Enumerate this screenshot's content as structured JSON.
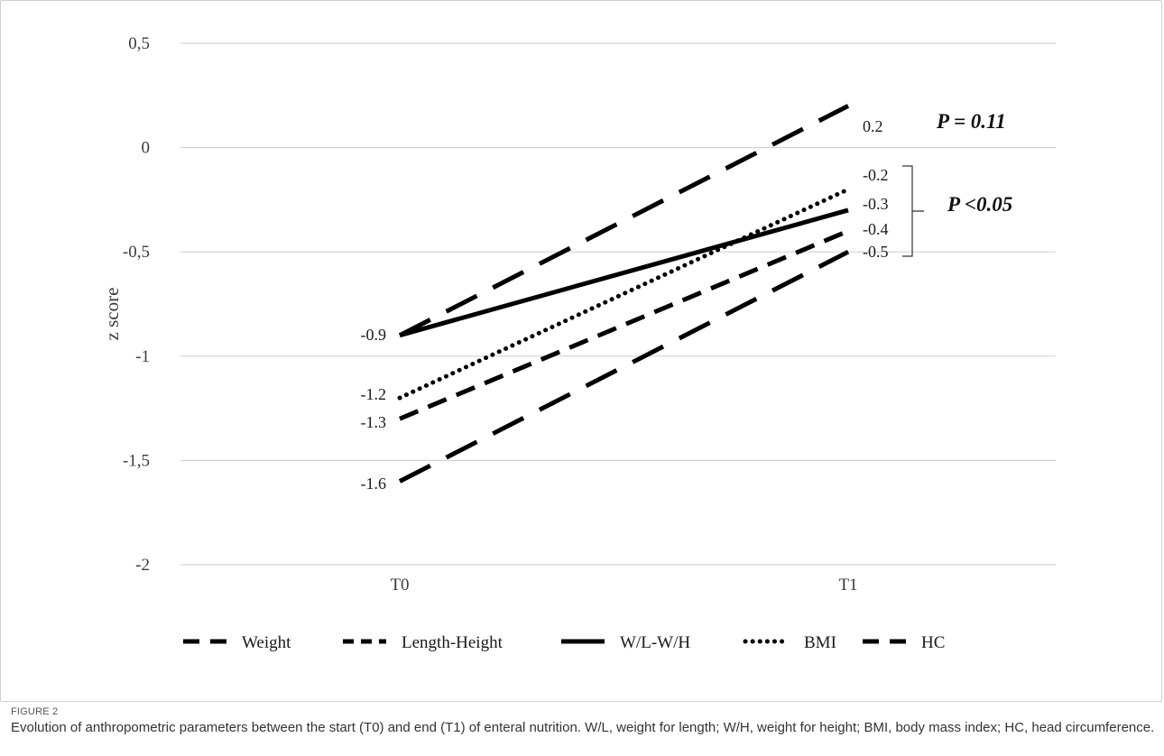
{
  "figure": {
    "label": "FIGURE 2",
    "caption": "Evolution of anthropometric parameters between the start (T0) and end (T1) of enteral nutrition. W/L, weight for length; W/H, weight for height; BMI, body mass index; HC, head circumference."
  },
  "chart_data": {
    "type": "line",
    "title": "",
    "xlabel": "",
    "ylabel": "z score",
    "categories": [
      "T0",
      "T1"
    ],
    "ylim": [
      -2,
      0.5
    ],
    "yticks": [
      0.5,
      0,
      -0.5,
      -1,
      -1.5,
      -2
    ],
    "ytick_labels": [
      "0,5",
      "0",
      "-0,5",
      "-1",
      "-1,5",
      "-2"
    ],
    "grid": true,
    "legend_position": "bottom",
    "series": [
      {
        "name": "Weight",
        "values": [
          -1.6,
          -0.5
        ],
        "dash": "long-dash",
        "color": "#000000"
      },
      {
        "name": "Length-Height",
        "values": [
          -1.3,
          -0.4
        ],
        "dash": "dash",
        "color": "#000000"
      },
      {
        "name": "W/L-W/H",
        "values": [
          -0.9,
          -0.3
        ],
        "dash": "solid",
        "color": "#000000"
      },
      {
        "name": "BMI",
        "values": [
          -1.2,
          -0.2
        ],
        "dash": "dot",
        "color": "#000000"
      },
      {
        "name": "HC",
        "values": [
          -0.9,
          0.2
        ],
        "dash": "long-dash",
        "color": "#000000"
      }
    ],
    "t0_labels": [
      "-0.9",
      "-1.2",
      "-1.3",
      "-1.6"
    ],
    "t1_labels": [
      "0.2",
      "-0.2",
      "-0.3",
      "-0.4",
      "-0.5"
    ],
    "annotations": {
      "p_hc": "P = 0.11",
      "p_others": "P <0.05"
    }
  }
}
